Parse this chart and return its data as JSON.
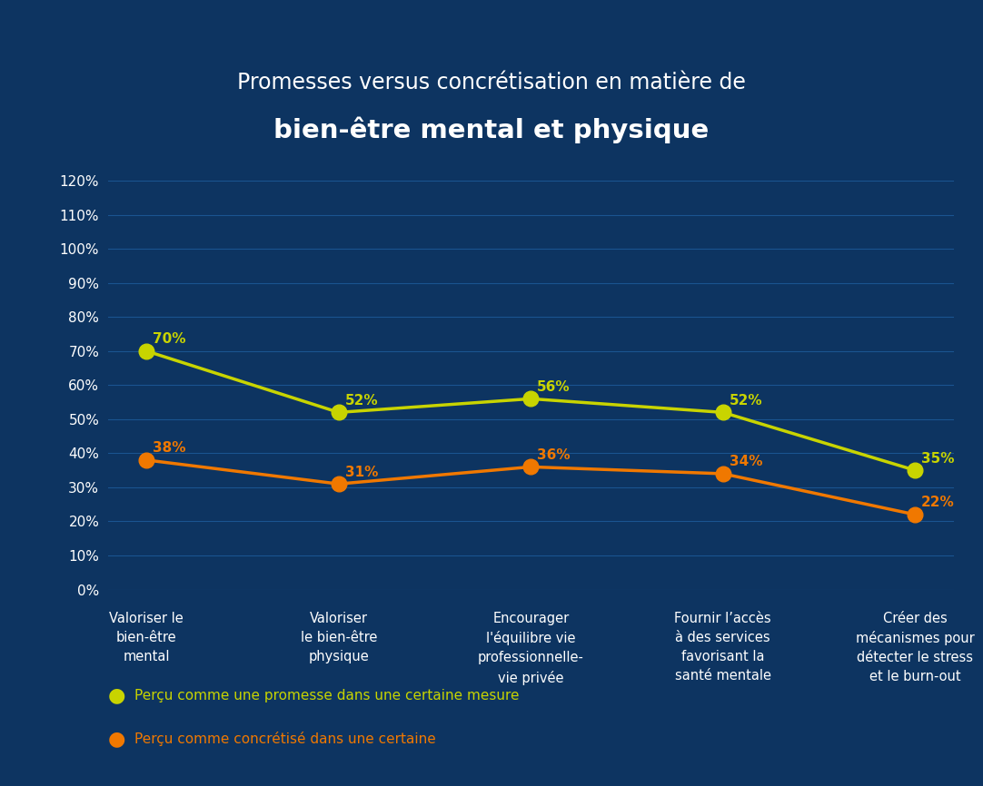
{
  "title_line1": "Promesses versus concrétisation en matière de",
  "title_line2": "bien-être mental et physique",
  "categories": [
    "Valoriser le\nbien-être\nmental",
    "Valoriser\nle bien-être\nphysique",
    "Encourager\nl'équilibre vie\nprofessionnelle-\nvie privée",
    "Fournir l’accès\nà des services\nfavorisant la\nsanté mentale",
    "Créer des\nmécanismes pour\ndétecter le stress\net le burn-out"
  ],
  "series_promise": [
    70,
    52,
    56,
    52,
    35
  ],
  "series_concrete": [
    38,
    31,
    36,
    34,
    22
  ],
  "color_promise": "#c8d400",
  "color_concrete": "#f07800",
  "background_color": "#0d3461",
  "grid_color": "#1a5490",
  "text_color": "#ffffff",
  "ylim_max": 120,
  "yticks": [
    0,
    10,
    20,
    30,
    40,
    50,
    60,
    70,
    80,
    90,
    100,
    110,
    120
  ],
  "legend1": "Perçu comme une promesse dans une certaine mesure",
  "legend2": "Perçu comme concrétisé dans une certaine",
  "marker_size": 12,
  "line_width": 2.5,
  "annotation_fontsize": 11,
  "tick_fontsize": 11,
  "xticklabel_fontsize": 10.5,
  "title1_fontsize": 17,
  "title2_fontsize": 21,
  "legend_fontsize": 11
}
